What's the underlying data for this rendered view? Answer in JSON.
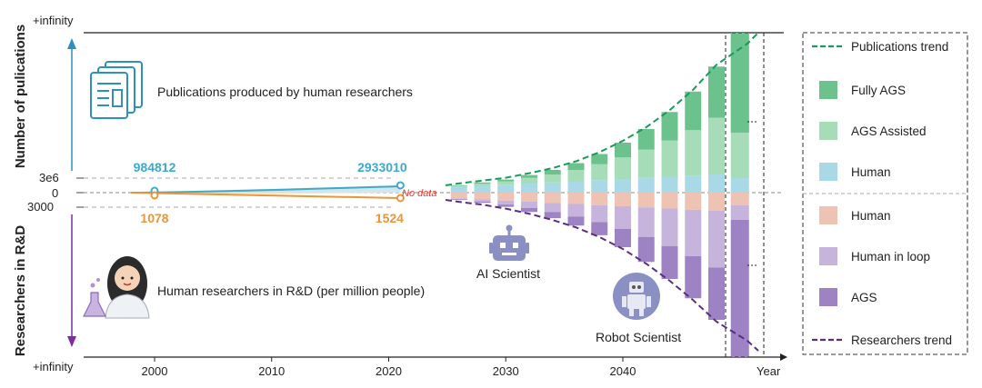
{
  "chart_data": {
    "type": "bar",
    "title": "",
    "xlabel": "Year",
    "ylabel_top": "Number of pulications",
    "ylabel_bottom": "Researchers in R&D",
    "top_axis_label": "+infinity",
    "bottom_axis_label": "+infinity",
    "y_ticks": [
      "3e6",
      "0",
      "3000"
    ],
    "x_ticks": [
      2000,
      2010,
      2020,
      2030,
      2040
    ],
    "xlim": [
      1994,
      2052
    ],
    "historical": {
      "publications": {
        "start_year": 2000,
        "end_year": 2021,
        "start_value": 984812,
        "end_value": 2933010,
        "start_label": "984812",
        "end_label": "2933010"
      },
      "researchers": {
        "start_year": 2000,
        "end_year": 2021,
        "start_value": 1078,
        "end_value": 1524,
        "start_label": "1078",
        "end_label": "1524"
      }
    },
    "no_data_label": "No data",
    "projection_years": [
      2026,
      2028,
      2030,
      2032,
      2034,
      2036,
      2038,
      2040,
      2042,
      2044,
      2046,
      2048
    ],
    "publications_series": [
      {
        "name": "Human",
        "values": [
          0.5,
          0.6,
          0.7,
          0.8,
          0.9,
          1.0,
          1.1,
          1.2,
          1.3,
          1.4,
          1.5,
          1.6
        ]
      },
      {
        "name": "AGS Assisted",
        "values": [
          0.1,
          0.2,
          0.3,
          0.5,
          0.7,
          1.0,
          1.4,
          1.9,
          2.5,
          3.2,
          4.0,
          5.0
        ]
      },
      {
        "name": "Fully AGS",
        "values": [
          0.05,
          0.1,
          0.15,
          0.25,
          0.4,
          0.6,
          0.9,
          1.3,
          1.8,
          2.5,
          3.4,
          4.5
        ]
      }
    ],
    "researchers_series": [
      {
        "name": "Human",
        "values": [
          0.5,
          0.6,
          0.7,
          0.8,
          0.9,
          1.0,
          1.1,
          1.2,
          1.3,
          1.4,
          1.5,
          1.6
        ]
      },
      {
        "name": "Human in loop",
        "values": [
          0.1,
          0.2,
          0.35,
          0.55,
          0.8,
          1.1,
          1.5,
          2.0,
          2.6,
          3.3,
          4.1,
          5.0
        ]
      },
      {
        "name": "AGS",
        "values": [
          0.05,
          0.1,
          0.2,
          0.35,
          0.55,
          0.8,
          1.15,
          1.6,
          2.2,
          2.9,
          3.7,
          4.6
        ]
      }
    ],
    "final_year": 2050,
    "legend": [
      "Publications trend",
      "Fully AGS",
      "AGS Assisted",
      "Human",
      "Human",
      "Human in loop",
      "AGS",
      "Researchers trend"
    ],
    "annotations": {
      "publications": "Publications produced by human researchers",
      "researchers": "Human researchers in R&D (per million people)",
      "ai_scientist": "AI Scientist",
      "robot_scientist": "Robot Scientist"
    },
    "colors": {
      "pub_human": "#a9d8e6",
      "pub_assisted": "#a6dcb8",
      "pub_fully": "#6cc28c",
      "res_human": "#efc3b3",
      "res_loop": "#c6b4dc",
      "res_ags": "#9d83c4",
      "pub_trend": "#1a9a5a",
      "res_trend": "#5a2d82",
      "pub_line": "#3fa9c9",
      "res_line": "#e8963a",
      "axis_up": "#2f8fbd",
      "axis_down": "#7b2f9e"
    }
  }
}
